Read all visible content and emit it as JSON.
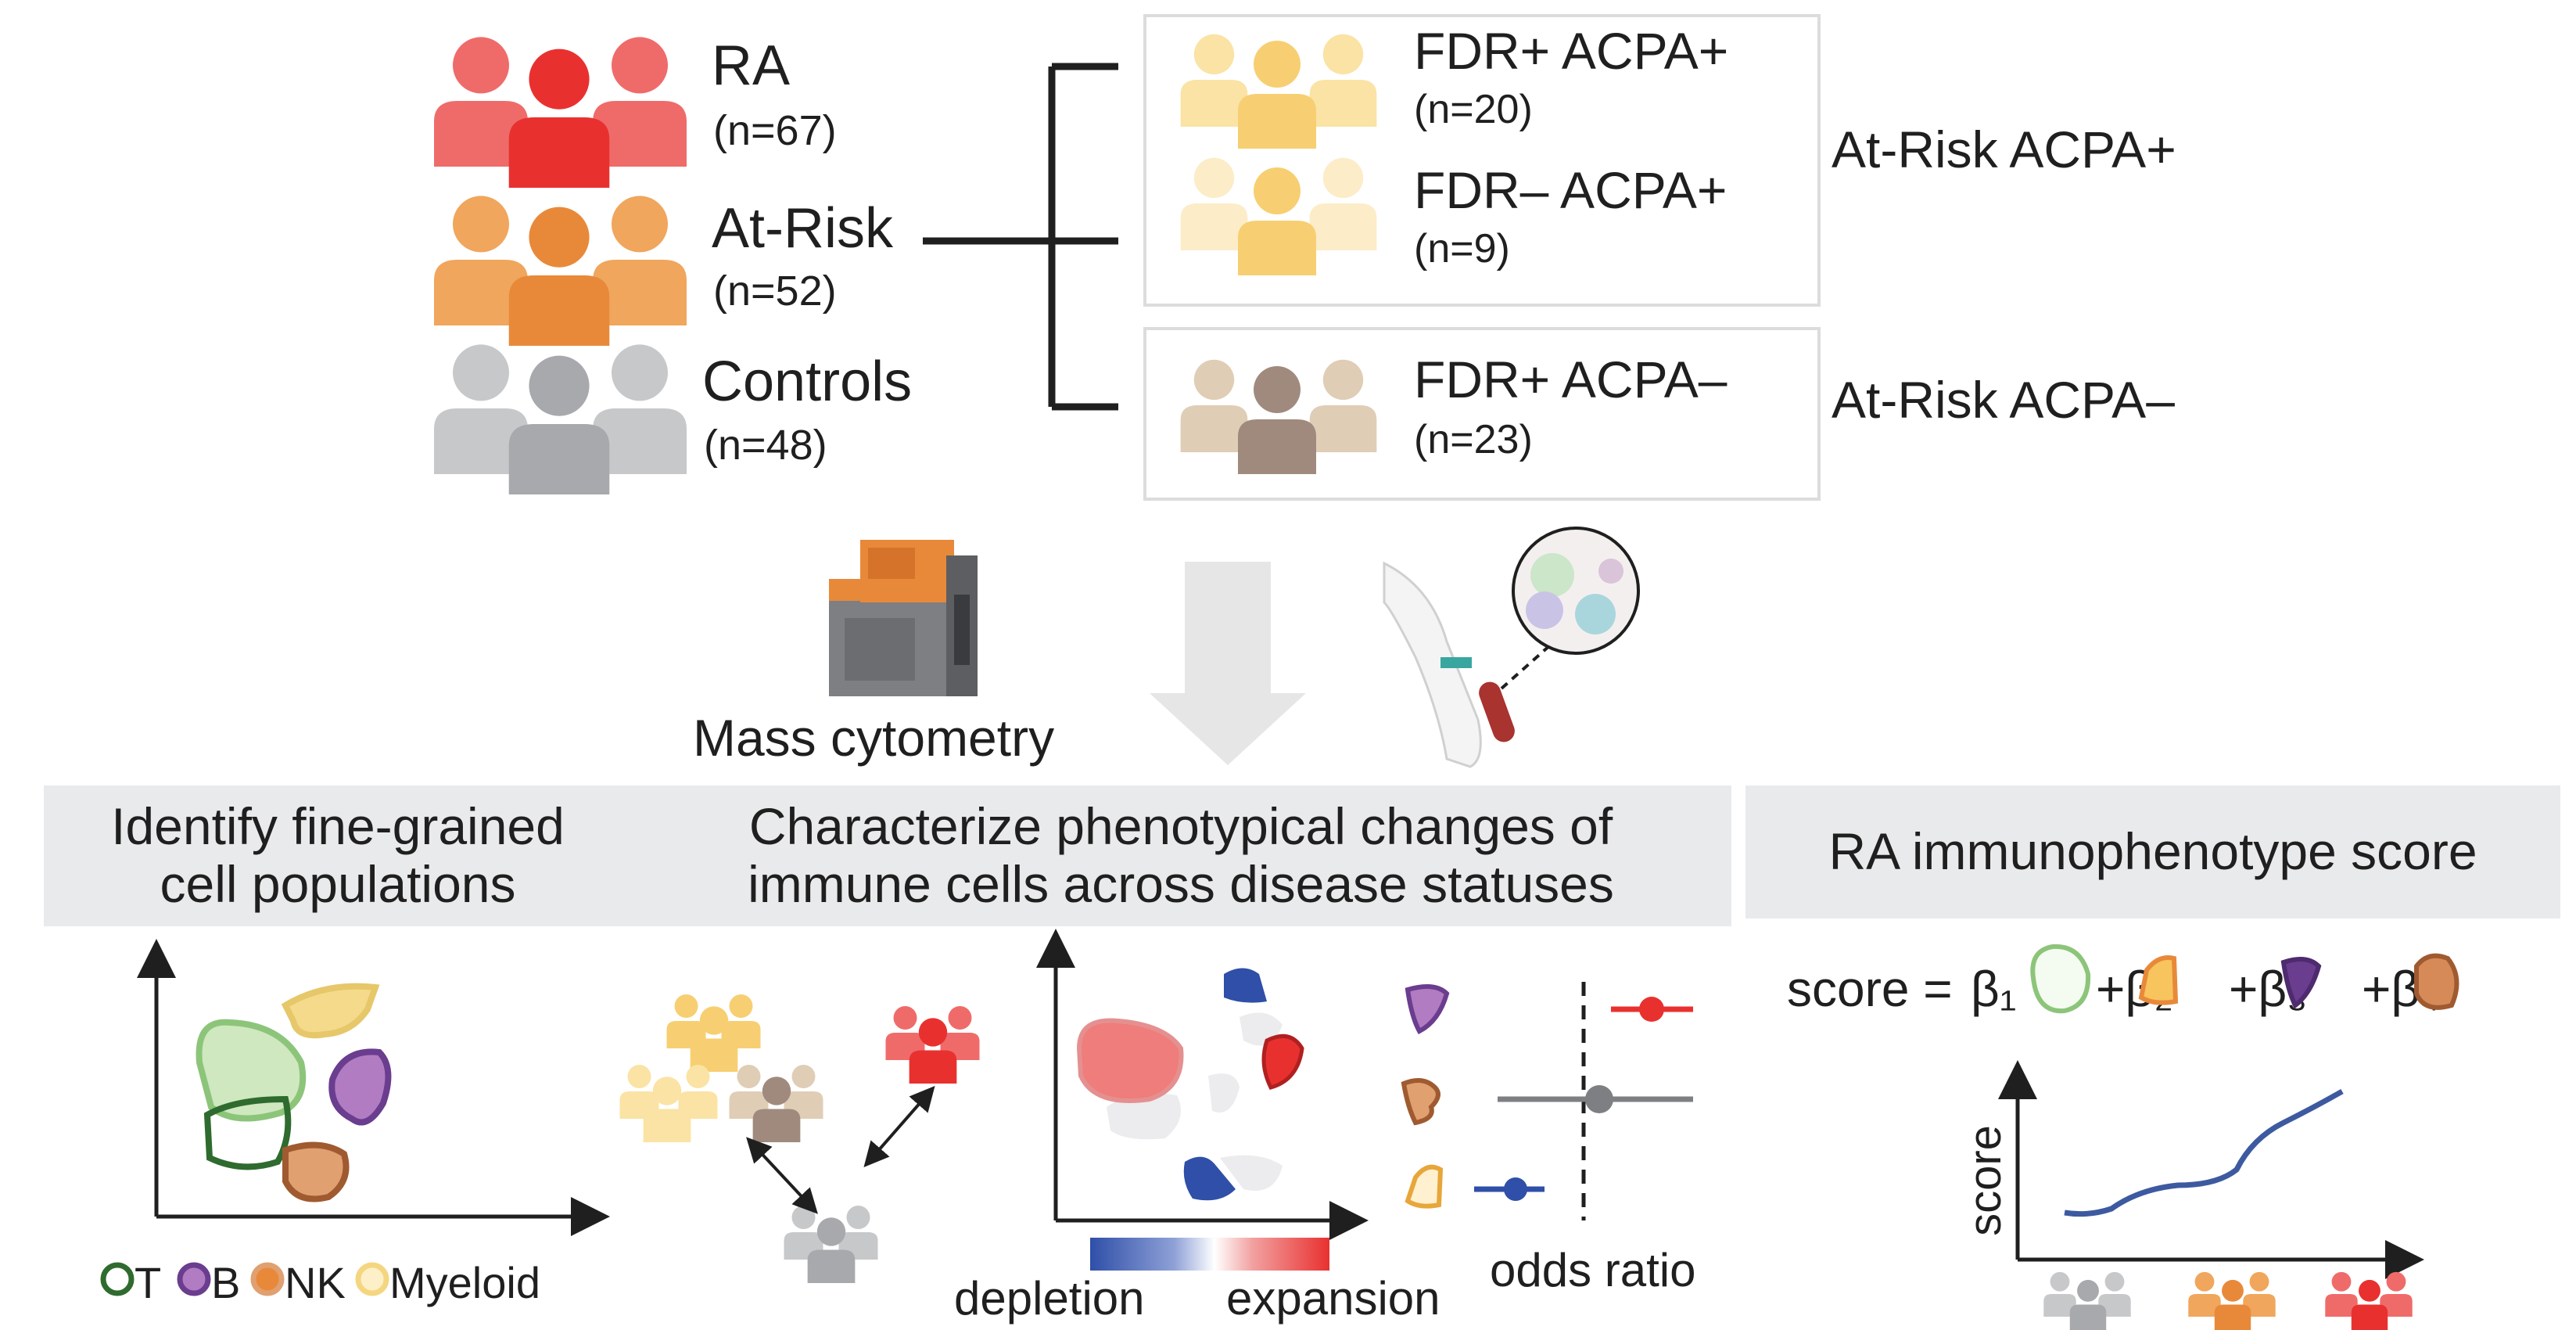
{
  "groups": [
    {
      "label": "RA",
      "n": "(n=67)",
      "color": "#e8312f"
    },
    {
      "label": "At-Risk",
      "n": "(n=52)",
      "color": "#e8893a"
    },
    {
      "label": "Controls",
      "n": "(n=48)",
      "color": "#a7a9ac"
    }
  ],
  "subgroups": [
    {
      "label": "FDR+ ACPA+",
      "n": "(n=20)",
      "color": "#f7cf72"
    },
    {
      "label": "FDR– ACPA+",
      "n": "(n=9)",
      "color": "#f7cf72"
    },
    {
      "label": "FDR+ ACPA–",
      "n": "(n=23)",
      "color": "#a08a7e"
    }
  ],
  "at_risk_labels": {
    "positive": "At-Risk ACPA+",
    "negative": "At-Risk ACPA–"
  },
  "method": {
    "label": "Mass cytometry"
  },
  "banners": {
    "identify": "Identify fine-grained\ncell populations",
    "characterize": "Characterize phenotypical changes of\nimmune cells across disease statuses",
    "score": "RA immunophenotype score"
  },
  "legend": {
    "items": [
      "T",
      "B",
      "NK",
      "Myeloid"
    ],
    "colors": [
      "#2f6b2f",
      "#6a3d8f",
      "#e8893a",
      "#f5d680"
    ]
  },
  "gradient": {
    "left": "depletion",
    "right": "expansion",
    "low_color": "#2f4fa8",
    "high_color": "#e8312f"
  },
  "odds_ratio_label": "odds ratio",
  "formula": {
    "prefix": "score = ",
    "terms": [
      "β₁",
      "+β₂",
      "+β₃",
      "+β₄"
    ]
  },
  "score_plot": {
    "ylabel": "score"
  }
}
